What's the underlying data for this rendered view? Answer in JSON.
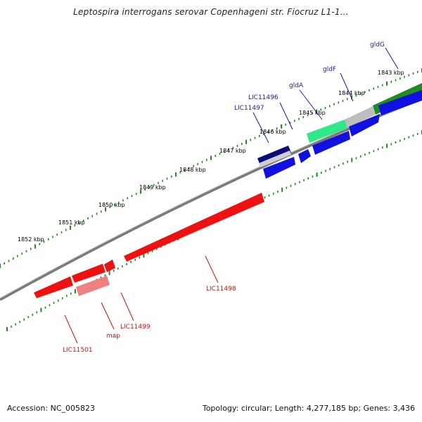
{
  "title": "Leptospira interrogans serovar Copenhageni str. Fiocruz L1-1...",
  "footer": {
    "accession": "Accession: NC_005823",
    "summary": "Topology: circular; Length: 4,277,185 bp; Genes: 3,436"
  },
  "colors": {
    "backbone": "#8a8a8a",
    "tick": "#1f8a1f",
    "forward_gene": "#1010e0",
    "reverse_gene": "#ee1111",
    "label_forward": "#1a1aa6",
    "label_reverse": "#cc1111"
  },
  "ticks": [
    "1843 kbp",
    "1844 kbp",
    "1845 kbp",
    "1846 kbp",
    "1847 kbp",
    "1848 kbp",
    "1849 kbp",
    "1850 kbp",
    "1851 kbp",
    "1852 kbp"
  ],
  "genes_forward": [
    {
      "name": "gldG",
      "color": "#228b22"
    },
    {
      "name": "gldF",
      "color": "#bdbdbd"
    },
    {
      "name": "gldA",
      "color": "#2ee88a"
    },
    {
      "name": "LIC11496",
      "color": "#cfcfcf"
    },
    {
      "name": "LIC11497",
      "color": "#0a0a7a"
    }
  ],
  "genes_reverse": [
    {
      "name": "LIC11498",
      "color": "#ee1111"
    },
    {
      "name": "LIC11499",
      "color": "#ee1111"
    },
    {
      "name": "map",
      "color": "#f08080"
    },
    {
      "name": "LIC11501",
      "color": "#ee1111"
    }
  ]
}
